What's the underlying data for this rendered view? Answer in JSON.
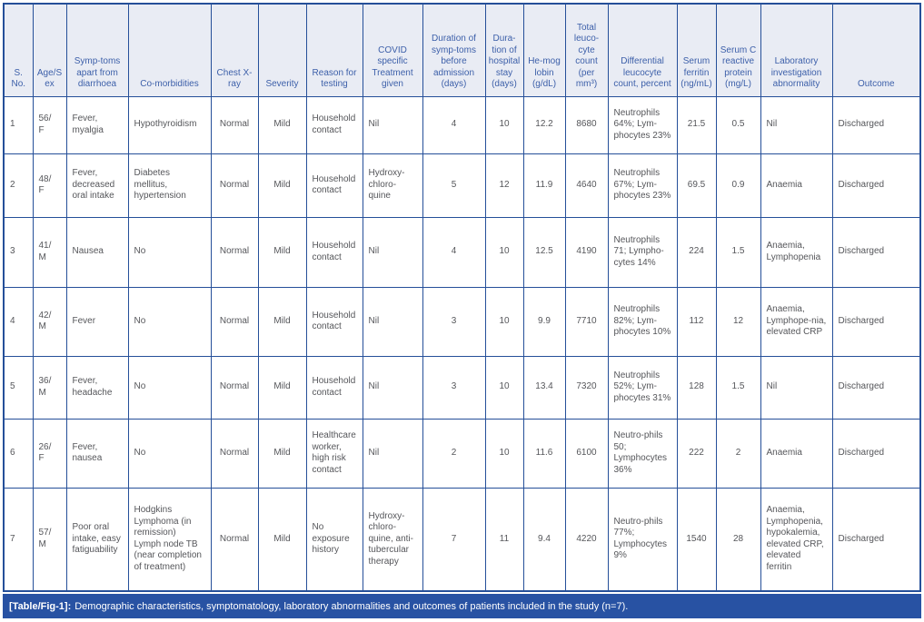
{
  "colors": {
    "border": "#254F99",
    "header_bg": "#E9ECF4",
    "header_text": "#3C5FA9",
    "body_text": "#55565A",
    "caption_bg": "#2852A3",
    "caption_text": "#FFFFFF"
  },
  "table": {
    "columns": [
      {
        "id": "s-no",
        "label": "S. No."
      },
      {
        "id": "age-sex",
        "label": "Age/Sex"
      },
      {
        "id": "symptoms",
        "label": "Symp-toms apart from diarrhoea"
      },
      {
        "id": "comorbidities",
        "label": "Co-morbidities"
      },
      {
        "id": "chest-xray",
        "label": "Chest X-ray"
      },
      {
        "id": "severity",
        "label": "Severity"
      },
      {
        "id": "reason-for-testing",
        "label": "Reason for testing"
      },
      {
        "id": "covid-treatment",
        "label": "COVID specific Treatment given"
      },
      {
        "id": "duration-symptoms",
        "label": "Duration of symp-toms before admission (days)"
      },
      {
        "id": "duration-stay",
        "label": "Dura-tion of hospital stay (days)"
      },
      {
        "id": "hemoglobin",
        "label": "He-mog lobin (g/dL)"
      },
      {
        "id": "total-leucocyte",
        "label": "Total leuco-cyte count (per mm³)"
      },
      {
        "id": "differential-leucocyte",
        "label": "Differential leucocyte count, percent"
      },
      {
        "id": "serum-ferritin",
        "label": "Serum ferritin (ng/mL)"
      },
      {
        "id": "serum-crp",
        "label": "Serum C reactive protein (mg/L)"
      },
      {
        "id": "lab-abnormality",
        "label": "Laboratory investigation abnormality"
      },
      {
        "id": "outcome",
        "label": "Outcome"
      }
    ],
    "rows": [
      [
        "1",
        "56/\nF",
        "Fever, myalgia",
        "Hypothyroidism",
        "Normal",
        "Mild",
        "Household contact",
        "Nil",
        "4",
        "10",
        "12.2",
        "8680",
        "Neutrophils 64%; Lym-phocytes 23%",
        "21.5",
        "0.5",
        "Nil",
        "Discharged"
      ],
      [
        "2",
        "48/\nF",
        "Fever, decreased oral intake",
        "Diabetes mellitus, hypertension",
        "Normal",
        "Mild",
        "Household contact",
        "Hydroxy-chloro-quine",
        "5",
        "12",
        "11.9",
        "4640",
        "Neutrophils 67%; Lym-phocytes 23%",
        "69.5",
        "0.9",
        "Anaemia",
        "Discharged"
      ],
      [
        "3",
        "41/\nM",
        "Nausea",
        "No",
        "Normal",
        "Mild",
        "Household contact",
        "Nil",
        "4",
        "10",
        "12.5",
        "4190",
        "Neutrophils 71; Lympho-cytes 14%",
        "224",
        "1.5",
        "Anaemia, Lymphopenia",
        "Discharged"
      ],
      [
        "4",
        "42/\nM",
        "Fever",
        "No",
        "Normal",
        "Mild",
        "Household contact",
        "Nil",
        "3",
        "10",
        "9.9",
        "7710",
        "Neutrophils 82%; Lym-phocytes 10%",
        "112",
        "12",
        "Anaemia, Lymphope-nia, elevated CRP",
        "Discharged"
      ],
      [
        "5",
        "36/\nM",
        "Fever, headache",
        "No",
        "Normal",
        "Mild",
        "Household contact",
        "Nil",
        "3",
        "10",
        "13.4",
        "7320",
        "Neutrophils 52%; Lym-phocytes 31%",
        "128",
        "1.5",
        "Nil",
        "Discharged"
      ],
      [
        "6",
        "26/\nF",
        "Fever, nausea",
        "No",
        "Normal",
        "Mild",
        "Healthcare worker, high risk contact",
        "Nil",
        "2",
        "10",
        "11.6",
        "6100",
        "Neutro-phils 50; Lymphocytes 36%",
        "222",
        "2",
        "Anaemia",
        "Discharged"
      ],
      [
        "7",
        "57/\nM",
        "Poor oral intake, easy fatiguability",
        "Hodgkins Lymphoma (in remission)\nLymph node TB (near completion of treatment)",
        "Normal",
        "Mild",
        "No exposure history",
        "Hydroxy-chloro-quine, anti-tubercular therapy",
        "7",
        "11",
        "9.4",
        "4220",
        "Neutro-phils 77%; Lymphocytes 9%",
        "1540",
        "28",
        "Anaemia, Lymphopenia, hypokalemia, elevated CRP, elevated ferritin",
        "Discharged"
      ]
    ]
  },
  "caption": {
    "label": "[Table/Fig-1]:",
    "text": "Demographic characteristics, symptomatology, laboratory abnormalities and outcomes of patients included in the study (n=7)."
  }
}
